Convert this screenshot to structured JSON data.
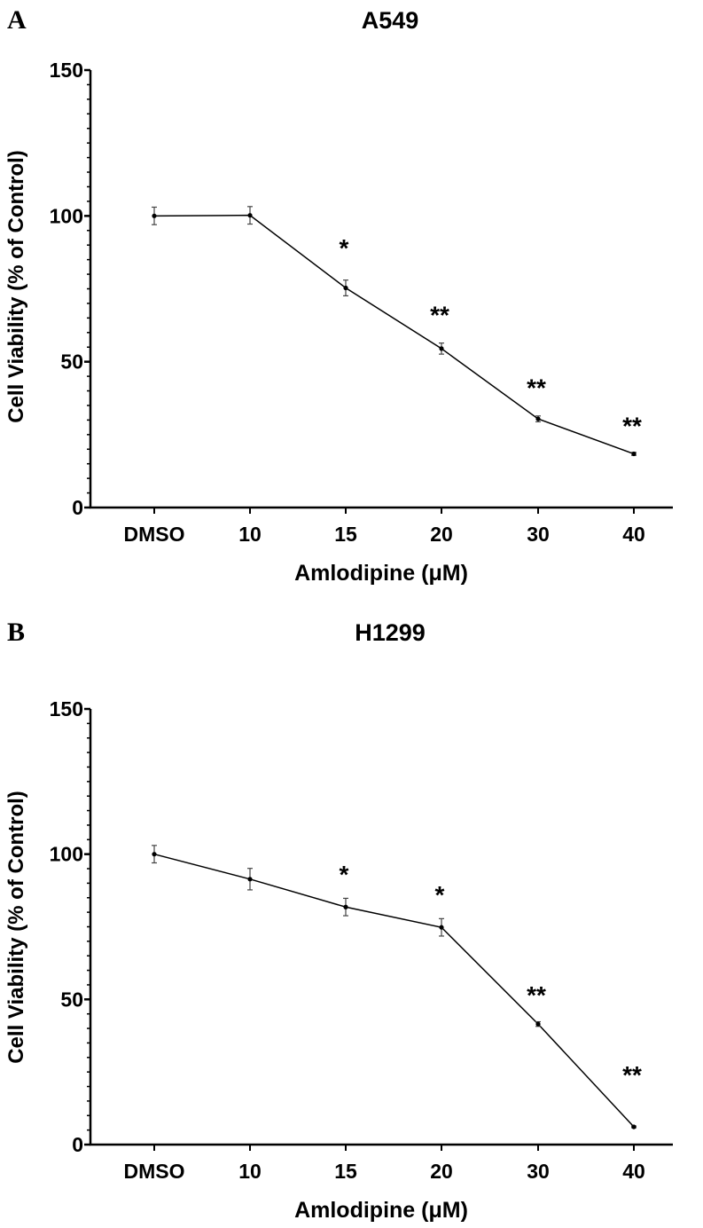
{
  "chart_data": [
    {
      "type": "line",
      "panel_label": "A",
      "title": "A549",
      "xlabel": "Amlodipine (μM)",
      "ylabel": "Cell Viability (% of Control)",
      "categories": [
        "DMSO",
        "10",
        "15",
        "20",
        "30",
        "40"
      ],
      "values": [
        100,
        100.2,
        75.3,
        54.5,
        30.4,
        18.4
      ],
      "errors": [
        3,
        3,
        2.7,
        1.9,
        1,
        0.5
      ],
      "ylim": [
        0,
        150
      ],
      "yticks": [
        0,
        50,
        100,
        150
      ],
      "minor_tick_step": 5,
      "annotations": [
        {
          "category": "15",
          "text": "*",
          "y": 91
        },
        {
          "category": "20",
          "text": "**",
          "y": 68
        },
        {
          "category": "30",
          "text": "**",
          "y": 43
        },
        {
          "category": "40",
          "text": "**",
          "y": 30
        }
      ],
      "grid": false
    },
    {
      "type": "line",
      "panel_label": "B",
      "title": "H1299",
      "xlabel": "Amlodipine (μM)",
      "ylabel": "Cell Viability (% of Control)",
      "categories": [
        "DMSO",
        "10",
        "15",
        "20",
        "30",
        "40"
      ],
      "values": [
        100,
        91.4,
        81.8,
        74.8,
        41.5,
        6.1
      ],
      "errors": [
        3,
        3.7,
        3,
        3,
        0.8,
        0.3
      ],
      "ylim": [
        0,
        150
      ],
      "yticks": [
        0,
        50,
        100,
        150
      ],
      "minor_tick_step": 5,
      "annotations": [
        {
          "category": "15",
          "text": "*",
          "y": 95
        },
        {
          "category": "20",
          "text": "*",
          "y": 88
        },
        {
          "category": "30",
          "text": "**",
          "y": 53.5
        },
        {
          "category": "40",
          "text": "**",
          "y": 26
        }
      ],
      "grid": false
    }
  ]
}
